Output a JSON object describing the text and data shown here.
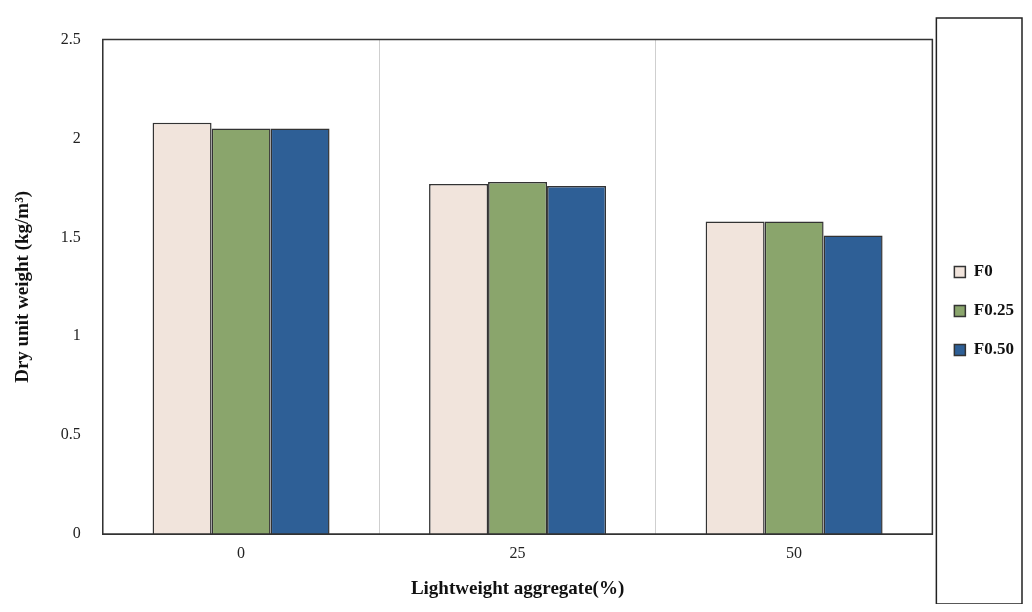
{
  "chart_data": {
    "type": "bar",
    "xlabel": "Lightweight aggregate(%)",
    "ylabel": "Dry unit weight (kg/m³)",
    "categories": [
      "0",
      "25",
      "50"
    ],
    "series": [
      {
        "name": "F0",
        "color": "#f1e4dc",
        "values": [
          2.08,
          1.77,
          1.58
        ]
      },
      {
        "name": "F0.25",
        "color": "#8aa56c",
        "values": [
          2.05,
          1.78,
          1.58
        ]
      },
      {
        "name": "F0.50",
        "color": "#2e5f96",
        "values": [
          2.05,
          1.76,
          1.51
        ]
      }
    ],
    "ylim": [
      0,
      2.5
    ],
    "yticks": [
      0,
      0.5,
      1,
      1.5,
      2,
      2.5
    ],
    "grid": "x",
    "legend": "right"
  }
}
